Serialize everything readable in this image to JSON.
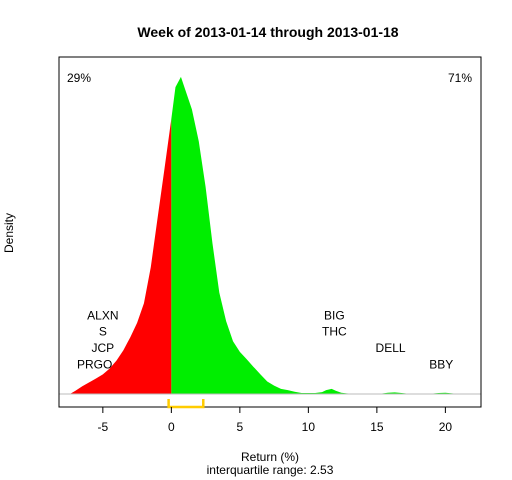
{
  "chart_data": {
    "type": "area",
    "title": "Week of 2013-01-14 through 2013-01-18",
    "xlabel": "Return (%)",
    "ylabel": "Density",
    "subtitle": "interquartile range: 2.53",
    "xlim": [
      -8.2,
      22.6
    ],
    "ylim": [
      0,
      1.0
    ],
    "xticks": [
      -5,
      0,
      5,
      10,
      15,
      20
    ],
    "pct_negative": "29%",
    "pct_positive": "71%",
    "colors": {
      "negative": "#ff0000",
      "positive": "#00ee00",
      "iqr": "#ffcc00",
      "neg_text": "#ff0000",
      "pos_text": "#00aa00"
    },
    "iqr": [
      -0.2,
      2.33
    ],
    "density": {
      "x": [
        -7.4,
        -7.0,
        -6.5,
        -6.0,
        -5.5,
        -5.0,
        -4.5,
        -4.0,
        -3.5,
        -3.0,
        -2.5,
        -2.0,
        -1.5,
        -1.0,
        -0.5,
        0.0,
        0.3,
        0.7,
        1.0,
        1.5,
        2.0,
        2.5,
        3.0,
        3.5,
        4.0,
        4.5,
        5.0,
        5.5,
        6.0,
        6.5,
        7.0,
        7.5,
        8.0,
        8.5,
        9.0,
        9.5,
        10.0,
        10.5,
        11.0,
        11.3,
        11.7,
        12.0,
        12.4,
        12.8,
        13.5,
        14.5,
        15.3,
        15.8,
        16.3,
        16.8,
        17.5,
        18.3,
        19.0,
        19.5,
        20.0,
        20.5,
        21.0
      ],
      "y": [
        0.0,
        0.01,
        0.024,
        0.036,
        0.048,
        0.061,
        0.079,
        0.104,
        0.136,
        0.176,
        0.221,
        0.282,
        0.394,
        0.548,
        0.7,
        0.855,
        0.953,
        0.985,
        0.947,
        0.884,
        0.785,
        0.643,
        0.468,
        0.315,
        0.226,
        0.164,
        0.131,
        0.108,
        0.084,
        0.061,
        0.039,
        0.026,
        0.016,
        0.012,
        0.007,
        0.003,
        0.003,
        0.003,
        0.006,
        0.012,
        0.016,
        0.01,
        0.004,
        0.002,
        0.0,
        0.0,
        0.001,
        0.004,
        0.005,
        0.003,
        0.0,
        0.0,
        0.001,
        0.003,
        0.004,
        0.002,
        0.0
      ]
    },
    "annotations": [
      {
        "text": "ALXN",
        "x": -5.0,
        "y": 0.231
      },
      {
        "text": "S",
        "x": -5.0,
        "y": 0.181
      },
      {
        "text": "JCP",
        "x": -5.0,
        "y": 0.13
      },
      {
        "text": "PRGO",
        "x": -5.6,
        "y": 0.079
      },
      {
        "text": "BIG",
        "x": 11.9,
        "y": 0.231
      },
      {
        "text": "THC",
        "x": 11.9,
        "y": 0.181
      },
      {
        "text": "DELL",
        "x": 16.0,
        "y": 0.13
      },
      {
        "text": "BBY",
        "x": 19.7,
        "y": 0.079
      }
    ]
  }
}
